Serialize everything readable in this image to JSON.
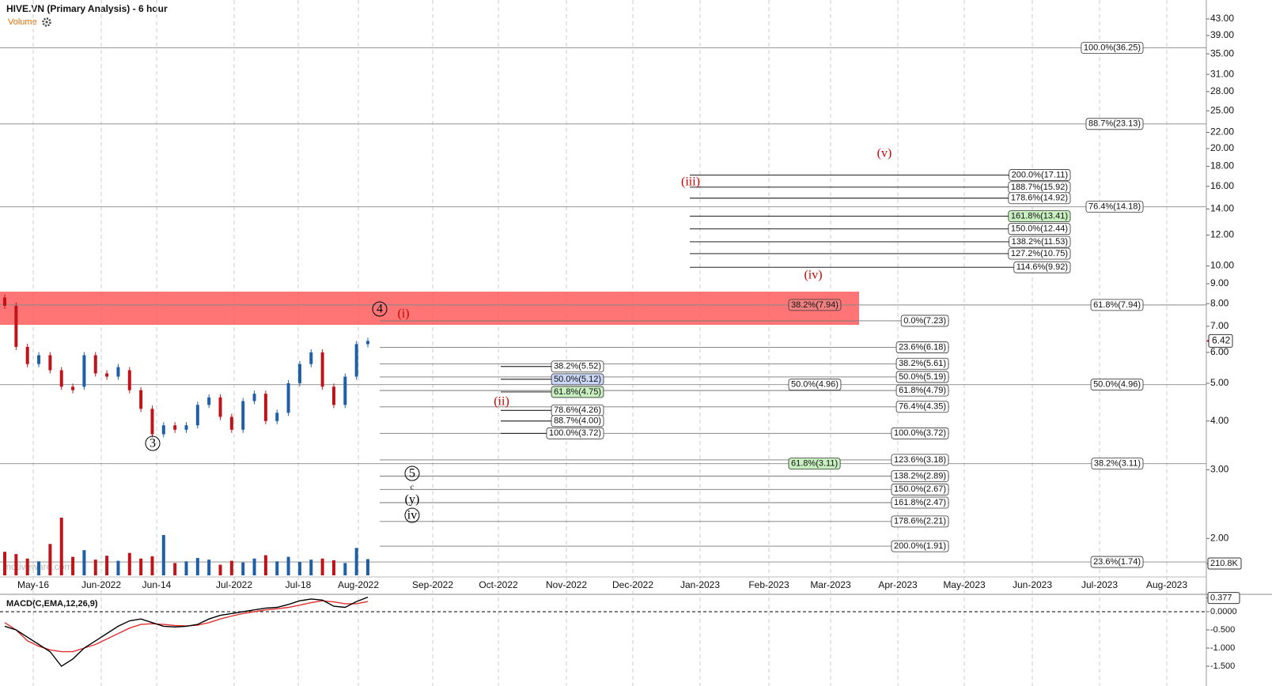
{
  "chart_data": {
    "type": "candlestick",
    "title": "HIVE.VN (Primary Analysis) - 6 hour",
    "volume_label": "Volume",
    "watermark": "motiveware.com",
    "log_scale": true,
    "ylim": [
      1.556,
      48.1
    ],
    "yticks": [
      {
        "value": 43,
        "label": "43.00"
      },
      {
        "value": 39,
        "label": "39.00"
      },
      {
        "value": 35,
        "label": "35.00"
      },
      {
        "value": 31,
        "label": "31.00"
      },
      {
        "value": 28,
        "label": "28.00"
      },
      {
        "value": 25,
        "label": "25.00"
      },
      {
        "value": 22,
        "label": "22.00"
      },
      {
        "value": 20,
        "label": "20.00"
      },
      {
        "value": 18,
        "label": "18.00"
      },
      {
        "value": 16,
        "label": "16.00"
      },
      {
        "value": 14,
        "label": "14.00"
      },
      {
        "value": 12,
        "label": "12.00"
      },
      {
        "value": 10,
        "label": "10.00"
      },
      {
        "value": 9,
        "label": "9.00"
      },
      {
        "value": 8,
        "label": "8.00"
      },
      {
        "value": 7,
        "label": "7.00"
      },
      {
        "value": 6,
        "label": "6.00"
      },
      {
        "value": 5,
        "label": "5.00"
      },
      {
        "value": 4,
        "label": "4.00"
      },
      {
        "value": 3,
        "label": "3.00"
      },
      {
        "value": 2,
        "label": "2.00"
      }
    ],
    "x_labels": [
      "May-16",
      "Jun-2022",
      "Jun-14",
      "Jul-2022",
      "Jul-18",
      "Aug-2022",
      "Sep-2022",
      "Oct-2022",
      "Nov-2022",
      "Dec-2022",
      "Jan-2023",
      "Feb-2023",
      "Mar-2023",
      "Apr-2023",
      "May-2023",
      "Jun-2023",
      "Jul-2023",
      "Aug-2023"
    ],
    "last_price": {
      "value": 6.42,
      "label": "6.42"
    },
    "colors": {
      "up": "#1f5fa8",
      "down": "#c0141b",
      "zone": "#ff5c5c",
      "wave_red": "#d40000"
    },
    "open": [
      8.3,
      7.9,
      6.2,
      5.6,
      5.9,
      5.4,
      4.9,
      4.9,
      5.9,
      5.3,
      5.2,
      5.4,
      4.8,
      4.3,
      3.7,
      3.9,
      3.8,
      3.9,
      4.4,
      4.6,
      4.1,
      3.8,
      4.5,
      4.7,
      4.0,
      4.2,
      5.0,
      5.6,
      6.0,
      4.9,
      4.4,
      5.2,
      6.3
    ],
    "close": [
      7.9,
      6.2,
      5.6,
      5.9,
      5.4,
      4.9,
      4.8,
      5.9,
      5.3,
      5.2,
      5.5,
      4.8,
      4.3,
      3.7,
      3.9,
      3.8,
      3.9,
      4.4,
      4.6,
      4.1,
      3.8,
      4.5,
      4.7,
      4.0,
      4.2,
      5.0,
      5.6,
      6.0,
      4.9,
      4.4,
      5.2,
      6.3,
      6.42
    ],
    "volume": [
      420000,
      380000,
      300000,
      250000,
      560000,
      1030000,
      330000,
      450000,
      280000,
      350000,
      260000,
      400000,
      300000,
      340000,
      720000,
      220000,
      250000,
      310000,
      280000,
      190000,
      260000,
      230000,
      300000,
      360000,
      250000,
      330000,
      240000,
      280000,
      300000,
      270000,
      220000,
      490000,
      290000
    ],
    "volume_ylim": [
      0,
      1100000
    ],
    "volume_tick": {
      "value": 210800,
      "label": "210.8K"
    },
    "zone": [
      7.06,
      8.59
    ],
    "fib_groups": [
      {
        "levels": [
          {
            "value": 36.25,
            "label": "100.0%(36.25)"
          },
          {
            "value": 23.13,
            "label": "88.7%(23.13)"
          },
          {
            "value": 14.18,
            "label": "76.4%(14.18)"
          },
          {
            "value": 7.94,
            "label": "61.8%(7.94)"
          },
          {
            "value": 4.96,
            "label": "50.0%(4.96)"
          },
          {
            "value": 3.11,
            "label": "38.2%(3.11)"
          },
          {
            "value": 1.74,
            "label": "23.6%(1.74)"
          }
        ]
      },
      {
        "levels": [
          {
            "value": 7.23,
            "label": "0.0%(7.23)"
          },
          {
            "value": 6.18,
            "label": "23.6%(6.18)"
          },
          {
            "value": 5.61,
            "label": "38.2%(5.61)"
          },
          {
            "value": 5.19,
            "label": "50.0%(5.19)"
          },
          {
            "value": 4.79,
            "label": "61.8%(4.79)"
          },
          {
            "value": 4.35,
            "label": "76.4%(4.35)"
          },
          {
            "value": 3.72,
            "label": "100.0%(3.72)"
          },
          {
            "value": 3.18,
            "label": "123.6%(3.18)"
          },
          {
            "value": 2.89,
            "label": "138.2%(2.89)"
          },
          {
            "value": 2.67,
            "label": "150.0%(2.67)"
          },
          {
            "value": 2.47,
            "label": "161.8%(2.47)"
          },
          {
            "value": 2.21,
            "label": "178.6%(2.21)"
          },
          {
            "value": 1.91,
            "label": "200.0%(1.91)"
          }
        ]
      },
      {
        "levels": [
          {
            "value": 5.52,
            "label": "38.2%(5.52)"
          },
          {
            "value": 5.12,
            "label": "50.0%(5.12)",
            "bg": "#c9d6f5"
          },
          {
            "value": 4.75,
            "label": "61.8%(4.75)",
            "bg": "#c8efc0"
          },
          {
            "value": 4.26,
            "label": "78.6%(4.26)"
          },
          {
            "value": 4.0,
            "label": "88.7%(4.00)"
          },
          {
            "value": 3.72,
            "label": "100.0%(3.72)"
          }
        ]
      },
      {
        "levels": [
          {
            "value": 17.11,
            "label": "200.0%(17.11)"
          },
          {
            "value": 15.92,
            "label": "188.7%(15.92)"
          },
          {
            "value": 14.92,
            "label": "178.6%(14.92)"
          },
          {
            "value": 13.41,
            "label": "161.8%(13.41)",
            "bg": "#c8efc0"
          },
          {
            "value": 12.44,
            "label": "150.0%(12.44)"
          },
          {
            "value": 11.53,
            "label": "138.2%(11.53)"
          },
          {
            "value": 10.75,
            "label": "127.2%(10.75)"
          },
          {
            "value": 9.92,
            "label": "114.6%(9.92)"
          }
        ]
      },
      {
        "levels": [
          {
            "value": 7.94,
            "label": "38.2%(7.94)",
            "bg": "#f08080"
          },
          {
            "value": 4.96,
            "label": "50.0%(4.96)"
          },
          {
            "value": 3.11,
            "label": "61.8%(3.11)",
            "bg": "#c8efc0"
          }
        ]
      }
    ],
    "wave_labels": [
      {
        "text": "4",
        "circled": true,
        "color": "black"
      },
      {
        "text": "(i)",
        "color": "red"
      },
      {
        "text": "3",
        "circled": true,
        "color": "black"
      },
      {
        "text": "(ii)",
        "color": "red"
      },
      {
        "text": "(iii)",
        "color": "red"
      },
      {
        "text": "(iv)",
        "color": "red"
      },
      {
        "text": "(v)",
        "color": "red"
      },
      {
        "text": "5",
        "circled": true,
        "color": "black"
      },
      {
        "text": "c",
        "color": "black"
      },
      {
        "text": "(y)",
        "color": "black"
      },
      {
        "text": "iv",
        "circled": true,
        "color": "black"
      }
    ],
    "macd": {
      "title": "MACD(C,EMA,12,26,9)",
      "ylim": [
        -2.043,
        0.413
      ],
      "yticks": [
        {
          "value": 0.377,
          "label": "0.377"
        },
        {
          "value": 0,
          "label": "0.0000"
        },
        {
          "value": -0.5,
          "label": "-0.500"
        },
        {
          "value": -1.0,
          "label": "-1.000"
        },
        {
          "value": -1.5,
          "label": "-1.500"
        }
      ],
      "macd": [
        -0.4,
        -0.5,
        -0.7,
        -0.9,
        -1.1,
        -1.5,
        -1.3,
        -1.0,
        -0.8,
        -0.6,
        -0.4,
        -0.25,
        -0.2,
        -0.3,
        -0.4,
        -0.42,
        -0.4,
        -0.35,
        -0.2,
        -0.1,
        -0.05,
        0.0,
        0.05,
        0.1,
        0.12,
        0.2,
        0.3,
        0.35,
        0.32,
        0.15,
        0.12,
        0.28,
        0.4
      ],
      "signal": [
        -0.3,
        -0.5,
        -0.8,
        -0.95,
        -1.05,
        -1.1,
        -1.1,
        -1.0,
        -0.9,
        -0.75,
        -0.6,
        -0.45,
        -0.35,
        -0.33,
        -0.35,
        -0.38,
        -0.39,
        -0.37,
        -0.3,
        -0.2,
        -0.12,
        -0.05,
        0.0,
        0.05,
        0.08,
        0.12,
        0.18,
        0.25,
        0.3,
        0.27,
        0.22,
        0.22,
        0.28
      ]
    }
  }
}
